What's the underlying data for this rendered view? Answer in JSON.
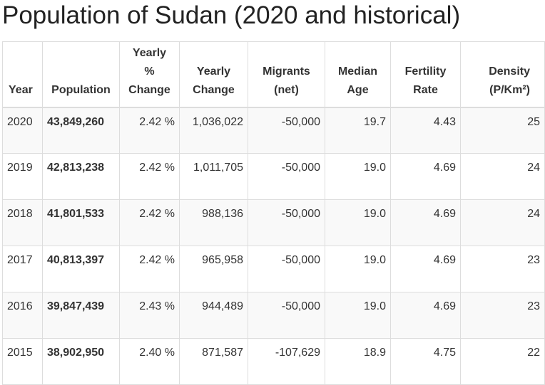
{
  "page": {
    "title": "Population of Sudan (2020 and historical)"
  },
  "table": {
    "headers": [
      [
        "Year"
      ],
      [
        "Population"
      ],
      [
        "Yearly",
        "%",
        "Change"
      ],
      [
        "Yearly",
        "Change"
      ],
      [
        "Migrants",
        "(net)"
      ],
      [
        "Median",
        "Age"
      ],
      [
        "Fertility",
        "Rate"
      ],
      [
        "Density",
        "(P/Km²)"
      ]
    ],
    "rows": [
      {
        "year": "2020",
        "population": "43,849,260",
        "pct_change": "2.42 %",
        "yearly_change": "1,036,022",
        "migrants": "-50,000",
        "median_age": "19.7",
        "fertility": "4.43",
        "density": "25"
      },
      {
        "year": "2019",
        "population": "42,813,238",
        "pct_change": "2.42 %",
        "yearly_change": "1,011,705",
        "migrants": "-50,000",
        "median_age": "19.0",
        "fertility": "4.69",
        "density": "24"
      },
      {
        "year": "2018",
        "population": "41,801,533",
        "pct_change": "2.42 %",
        "yearly_change": "988,136",
        "migrants": "-50,000",
        "median_age": "19.0",
        "fertility": "4.69",
        "density": "24"
      },
      {
        "year": "2017",
        "population": "40,813,397",
        "pct_change": "2.42 %",
        "yearly_change": "965,958",
        "migrants": "-50,000",
        "median_age": "19.0",
        "fertility": "4.69",
        "density": "23"
      },
      {
        "year": "2016",
        "population": "39,847,439",
        "pct_change": "2.43 %",
        "yearly_change": "944,489",
        "migrants": "-50,000",
        "median_age": "19.0",
        "fertility": "4.69",
        "density": "23"
      },
      {
        "year": "2015",
        "population": "38,902,950",
        "pct_change": "2.40 %",
        "yearly_change": "871,587",
        "migrants": "-107,629",
        "median_age": "18.9",
        "fertility": "4.75",
        "density": "22"
      }
    ]
  }
}
